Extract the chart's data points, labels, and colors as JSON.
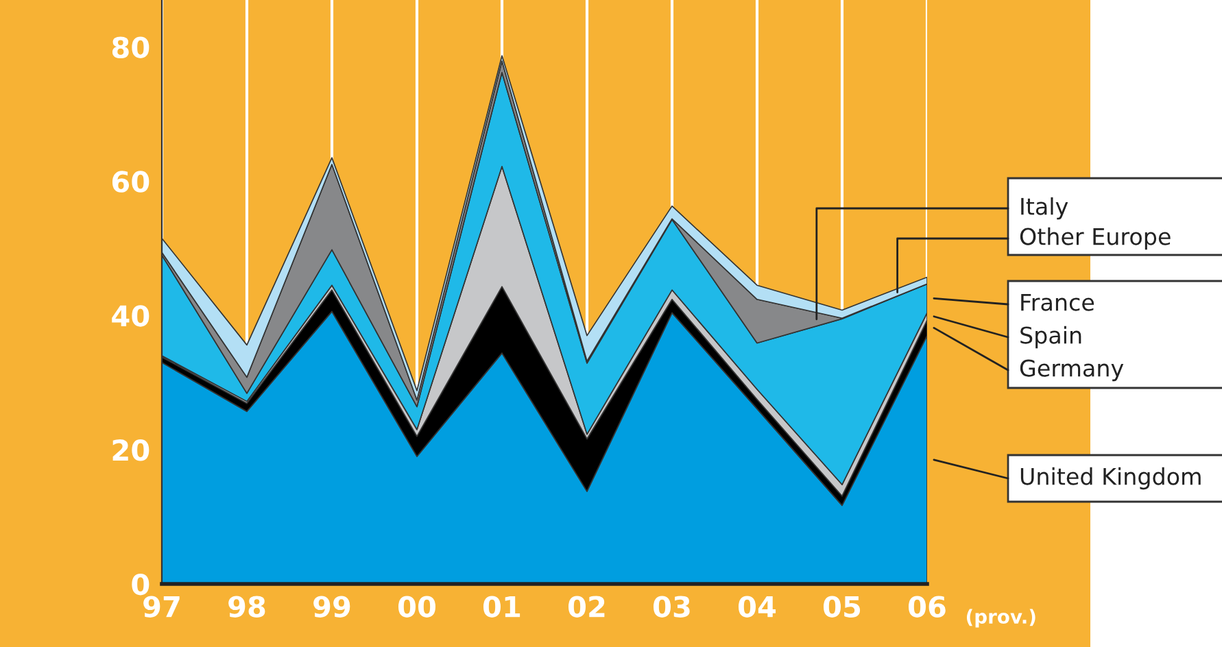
{
  "chart_data": {
    "type": "area",
    "stacked": true,
    "categories": [
      "97",
      "98",
      "99",
      "00",
      "01",
      "02",
      "03",
      "04",
      "05",
      "06"
    ],
    "annotations": [
      "(prov.)"
    ],
    "series": [
      {
        "name": "United Kingdom",
        "color": "#009ee0",
        "values": [
          33.0,
          25.7,
          40.6,
          19.0,
          34.4,
          13.8,
          40.4,
          26.1,
          11.7,
          37.0
        ]
      },
      {
        "name": "Germany",
        "color": "#000000",
        "values": [
          0.8,
          1.2,
          3.2,
          3.0,
          9.9,
          7.8,
          2.0,
          1.4,
          1.4,
          2.3
        ]
      },
      {
        "name": "Spain",
        "color": "#c6c7c9",
        "values": [
          0.2,
          0.3,
          0.7,
          1.0,
          17.9,
          0.7,
          1.4,
          1.5,
          1.7,
          1.1
        ]
      },
      {
        "name": "France",
        "color": "#1fb9e8",
        "values": [
          15.0,
          1.2,
          5.3,
          3.4,
          14.0,
          10.6,
          10.5,
          6.9,
          24.7,
          4.3
        ]
      },
      {
        "name": "Italy",
        "color": "#87888a",
        "values": [
          0.4,
          2.4,
          12.7,
          1.0,
          1.7,
          0.3,
          0.1,
          6.5,
          0.1,
          0.0
        ]
      },
      {
        "name": "Other Europe",
        "color": "#b3dff5",
        "values": [
          2.1,
          4.8,
          1.0,
          1.4,
          0.8,
          3.8,
          1.9,
          2.1,
          1.2,
          1.0
        ]
      }
    ],
    "ylim": [
      0,
      87
    ],
    "yticks": [
      0,
      20,
      40,
      60,
      80
    ],
    "grid": "x"
  }
}
